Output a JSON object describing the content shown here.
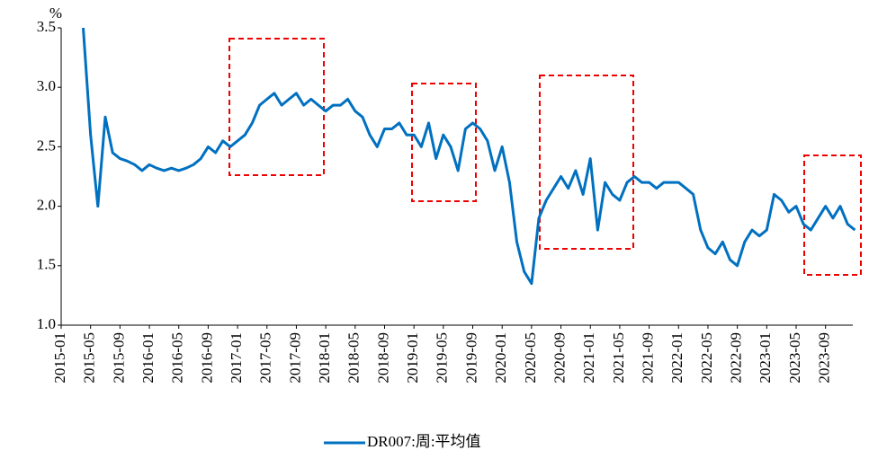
{
  "chart_data": {
    "type": "line",
    "y_label": "%",
    "categories": [
      "2015-01",
      null,
      null,
      null,
      "2015-05",
      null,
      null,
      null,
      "2015-09",
      null,
      null,
      null,
      "2016-01",
      null,
      null,
      null,
      "2016-05",
      null,
      null,
      null,
      "2016-09",
      null,
      null,
      null,
      "2017-01",
      null,
      null,
      null,
      "2017-05",
      null,
      null,
      null,
      "2017-09",
      null,
      null,
      null,
      "2018-01",
      null,
      null,
      null,
      "2018-05",
      null,
      null,
      null,
      "2018-09",
      null,
      null,
      null,
      "2019-01",
      null,
      null,
      null,
      "2019-05",
      null,
      null,
      null,
      "2019-09",
      null,
      null,
      null,
      "2020-01",
      null,
      null,
      null,
      "2020-05",
      null,
      null,
      null,
      "2020-09",
      null,
      null,
      null,
      "2021-01",
      null,
      null,
      null,
      "2021-05",
      null,
      null,
      null,
      "2021-09",
      null,
      null,
      null,
      "2022-01",
      null,
      null,
      null,
      "2022-05",
      null,
      null,
      null,
      "2022-09",
      null,
      null,
      null,
      "2023-01",
      null,
      null,
      null,
      "2023-05",
      null,
      null,
      null,
      "2023-09",
      null,
      null,
      null,
      null
    ],
    "series": [
      {
        "name": "DR007:周:平均值",
        "color": "#0070c0",
        "values": [
          null,
          null,
          null,
          3.5,
          2.6,
          2.0,
          2.75,
          2.45,
          2.4,
          2.38,
          2.35,
          2.3,
          2.35,
          2.32,
          2.3,
          2.32,
          2.3,
          2.32,
          2.35,
          2.4,
          2.5,
          2.45,
          2.55,
          2.5,
          2.55,
          2.6,
          2.7,
          2.85,
          2.9,
          2.95,
          2.85,
          2.9,
          2.95,
          2.85,
          2.9,
          2.85,
          2.8,
          2.85,
          2.85,
          2.9,
          2.8,
          2.75,
          2.6,
          2.5,
          2.65,
          2.65,
          2.7,
          2.6,
          2.6,
          2.5,
          2.7,
          2.4,
          2.6,
          2.5,
          2.3,
          2.65,
          2.7,
          2.65,
          2.55,
          2.3,
          2.5,
          2.2,
          1.7,
          1.45,
          1.35,
          1.9,
          2.05,
          2.15,
          2.25,
          2.15,
          2.3,
          2.1,
          2.4,
          1.8,
          2.2,
          2.1,
          2.05,
          2.2,
          2.25,
          2.2,
          2.2,
          2.15,
          2.2,
          2.2,
          2.2,
          2.15,
          2.1,
          1.8,
          1.65,
          1.6,
          1.7,
          1.55,
          1.5,
          1.7,
          1.8,
          1.75,
          1.8,
          2.1,
          2.05,
          1.95,
          2.0,
          1.85,
          1.8,
          1.9,
          2.0,
          1.9,
          2.0,
          1.85,
          1.8
        ]
      }
    ],
    "ylim": [
      1.0,
      3.5
    ],
    "yticks": [
      {
        "value": 1.0,
        "label": "1.0"
      },
      {
        "value": 1.5,
        "label": "1.5"
      },
      {
        "value": 2.0,
        "label": "2.0"
      },
      {
        "value": 2.5,
        "label": "2.5"
      },
      {
        "value": 3.0,
        "label": "3.0"
      },
      {
        "value": 3.5,
        "label": "3.5"
      }
    ],
    "grid": false,
    "legend": "bottom"
  }
}
